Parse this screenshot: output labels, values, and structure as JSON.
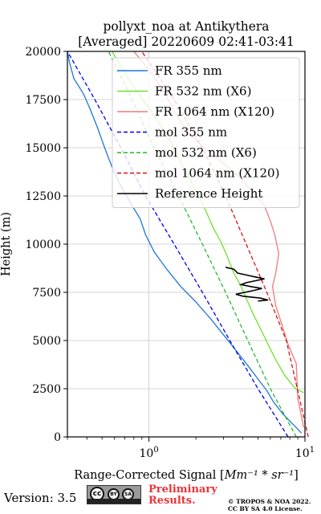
{
  "chart_data": {
    "type": "line",
    "title_line1": "pollyxt_noa at Antikythera",
    "title_line2": "[Averaged] 20220609 02:41-03:41",
    "xlabel_prefix": "Range-Corrected Signal [",
    "xlabel_math": "Mm⁻¹ * sr⁻¹",
    "xlabel_suffix": "]",
    "ylabel": "Height (m)",
    "x_scale": "log",
    "xlim": [
      0.3,
      10
    ],
    "ylim": [
      0,
      20000
    ],
    "x_ticks": [
      {
        "value": 1,
        "label": "10",
        "sup": "0"
      },
      {
        "value": 10,
        "label": "10",
        "sup": "1"
      }
    ],
    "y_ticks": [
      0,
      2500,
      5000,
      7500,
      10000,
      12500,
      15000,
      17500,
      20000
    ],
    "grid": true,
    "legend_position": "top-right",
    "series": [
      {
        "name": "FR 355 nm",
        "color": "#1f77d4",
        "style": "solid",
        "points": [
          [
            9.5,
            200
          ],
          [
            8.5,
            600
          ],
          [
            7.2,
            1200
          ],
          [
            6.3,
            1800
          ],
          [
            5.7,
            2400
          ],
          [
            5.0,
            3000
          ],
          [
            4.3,
            3700
          ],
          [
            3.6,
            4500
          ],
          [
            3.0,
            5300
          ],
          [
            2.5,
            6100
          ],
          [
            2.0,
            7000
          ],
          [
            1.6,
            7800
          ],
          [
            1.3,
            8700
          ],
          [
            1.08,
            9600
          ],
          [
            0.95,
            10500
          ],
          [
            0.88,
            11300
          ],
          [
            0.78,
            12000
          ],
          [
            0.66,
            13000
          ],
          [
            0.58,
            14000
          ],
          [
            0.52,
            15000
          ],
          [
            0.47,
            16000
          ],
          [
            0.42,
            17000
          ],
          [
            0.38,
            17800
          ],
          [
            0.33,
            18600
          ],
          [
            0.31,
            19400
          ],
          [
            0.3,
            20000
          ]
        ]
      },
      {
        "name": "FR 532 nm (X6)",
        "color": "#6ee32a",
        "style": "solid",
        "points": [
          [
            9.8,
            2300
          ],
          [
            8.7,
            2500
          ],
          [
            7.4,
            3200
          ],
          [
            6.5,
            4000
          ],
          [
            5.8,
            4800
          ],
          [
            5.2,
            5600
          ],
          [
            4.7,
            6300
          ],
          [
            4.3,
            7000
          ],
          [
            3.9,
            7800
          ],
          [
            3.5,
            8500
          ],
          [
            3.2,
            9300
          ],
          [
            2.9,
            10100
          ],
          [
            2.6,
            10800
          ],
          [
            2.35,
            11600
          ],
          [
            2.15,
            12300
          ],
          [
            1.9,
            13100
          ],
          [
            1.65,
            14000
          ],
          [
            1.45,
            15000
          ],
          [
            1.25,
            15900
          ],
          [
            1.05,
            16800
          ],
          [
            0.88,
            17700
          ],
          [
            0.75,
            18500
          ],
          [
            0.65,
            19300
          ],
          [
            0.58,
            20000
          ]
        ]
      },
      {
        "name": "FR 1064 nm (X120)",
        "color": "#f07a7a",
        "style": "solid",
        "points": [
          [
            9.8,
            500
          ],
          [
            9.0,
            2000
          ],
          [
            8.8,
            3800
          ],
          [
            7.8,
            4800
          ],
          [
            7.0,
            6000
          ],
          [
            6.5,
            6800
          ],
          [
            6.2,
            7800
          ],
          [
            6.5,
            8500
          ],
          [
            6.8,
            9500
          ],
          [
            6.4,
            10500
          ],
          [
            6.0,
            11200
          ],
          [
            5.5,
            12000
          ],
          [
            4.5,
            12800
          ],
          [
            3.8,
            13500
          ],
          [
            3.0,
            14200
          ],
          [
            2.4,
            14800
          ],
          [
            2.0,
            15400
          ],
          [
            1.7,
            16000
          ],
          [
            1.5,
            16700
          ],
          [
            1.35,
            17400
          ],
          [
            1.2,
            18100
          ],
          [
            1.05,
            18800
          ],
          [
            0.9,
            19500
          ],
          [
            0.8,
            20000
          ]
        ]
      },
      {
        "name": "mol 355 nm",
        "color": "#0000ee",
        "style": "dashed",
        "points": [
          [
            7.8,
            0
          ],
          [
            5.0,
            2500
          ],
          [
            3.3,
            5000
          ],
          [
            2.2,
            7500
          ],
          [
            1.45,
            10000
          ],
          [
            0.95,
            12500
          ],
          [
            0.66,
            15000
          ],
          [
            0.45,
            17500
          ],
          [
            0.3,
            20000
          ]
        ]
      },
      {
        "name": "mol 532 nm (X6)",
        "color": "#22bb22",
        "style": "dashed",
        "points": [
          [
            8.8,
            0
          ],
          [
            6.0,
            2500
          ],
          [
            4.3,
            5000
          ],
          [
            3.1,
            7500
          ],
          [
            2.2,
            10000
          ],
          [
            1.55,
            12500
          ],
          [
            1.08,
            15000
          ],
          [
            0.78,
            17500
          ],
          [
            0.55,
            20000
          ]
        ]
      },
      {
        "name": "mol 1064 nm (X120)",
        "color": "#dd1111",
        "style": "dashed",
        "points": [
          [
            10.5,
            0
          ],
          [
            7.6,
            5000
          ],
          [
            5.7,
            7500
          ],
          [
            4.2,
            10000
          ],
          [
            3.1,
            12500
          ],
          [
            2.2,
            15000
          ],
          [
            1.45,
            17500
          ],
          [
            0.9,
            20000
          ]
        ]
      },
      {
        "name": "Reference Height",
        "color": "#000000",
        "style": "solid",
        "points": [
          [
            3.1,
            8800
          ],
          [
            3.5,
            8700
          ],
          [
            3.7,
            8500
          ],
          [
            4.2,
            8400
          ],
          [
            4.8,
            8300
          ],
          [
            5.5,
            8200
          ],
          [
            4.8,
            8100
          ],
          [
            4.2,
            8000
          ],
          [
            3.9,
            7900
          ],
          [
            4.5,
            7800
          ],
          [
            5.3,
            7700
          ],
          [
            4.7,
            7600
          ],
          [
            3.6,
            7400
          ],
          [
            4.0,
            7300
          ],
          [
            5.2,
            7200
          ],
          [
            5.8,
            7100
          ],
          [
            5.0,
            7050
          ]
        ]
      }
    ]
  },
  "footer": {
    "version": "Version: 3.5",
    "cc_text": "cc",
    "cc_by": "BY",
    "cc_sa": "SA",
    "preliminary_line1": "Preliminary",
    "preliminary_line2": "Results.",
    "copyright_line1": "© TROPOS & NOA 2022.",
    "copyright_line2": "CC BY SA 4.0 License."
  }
}
